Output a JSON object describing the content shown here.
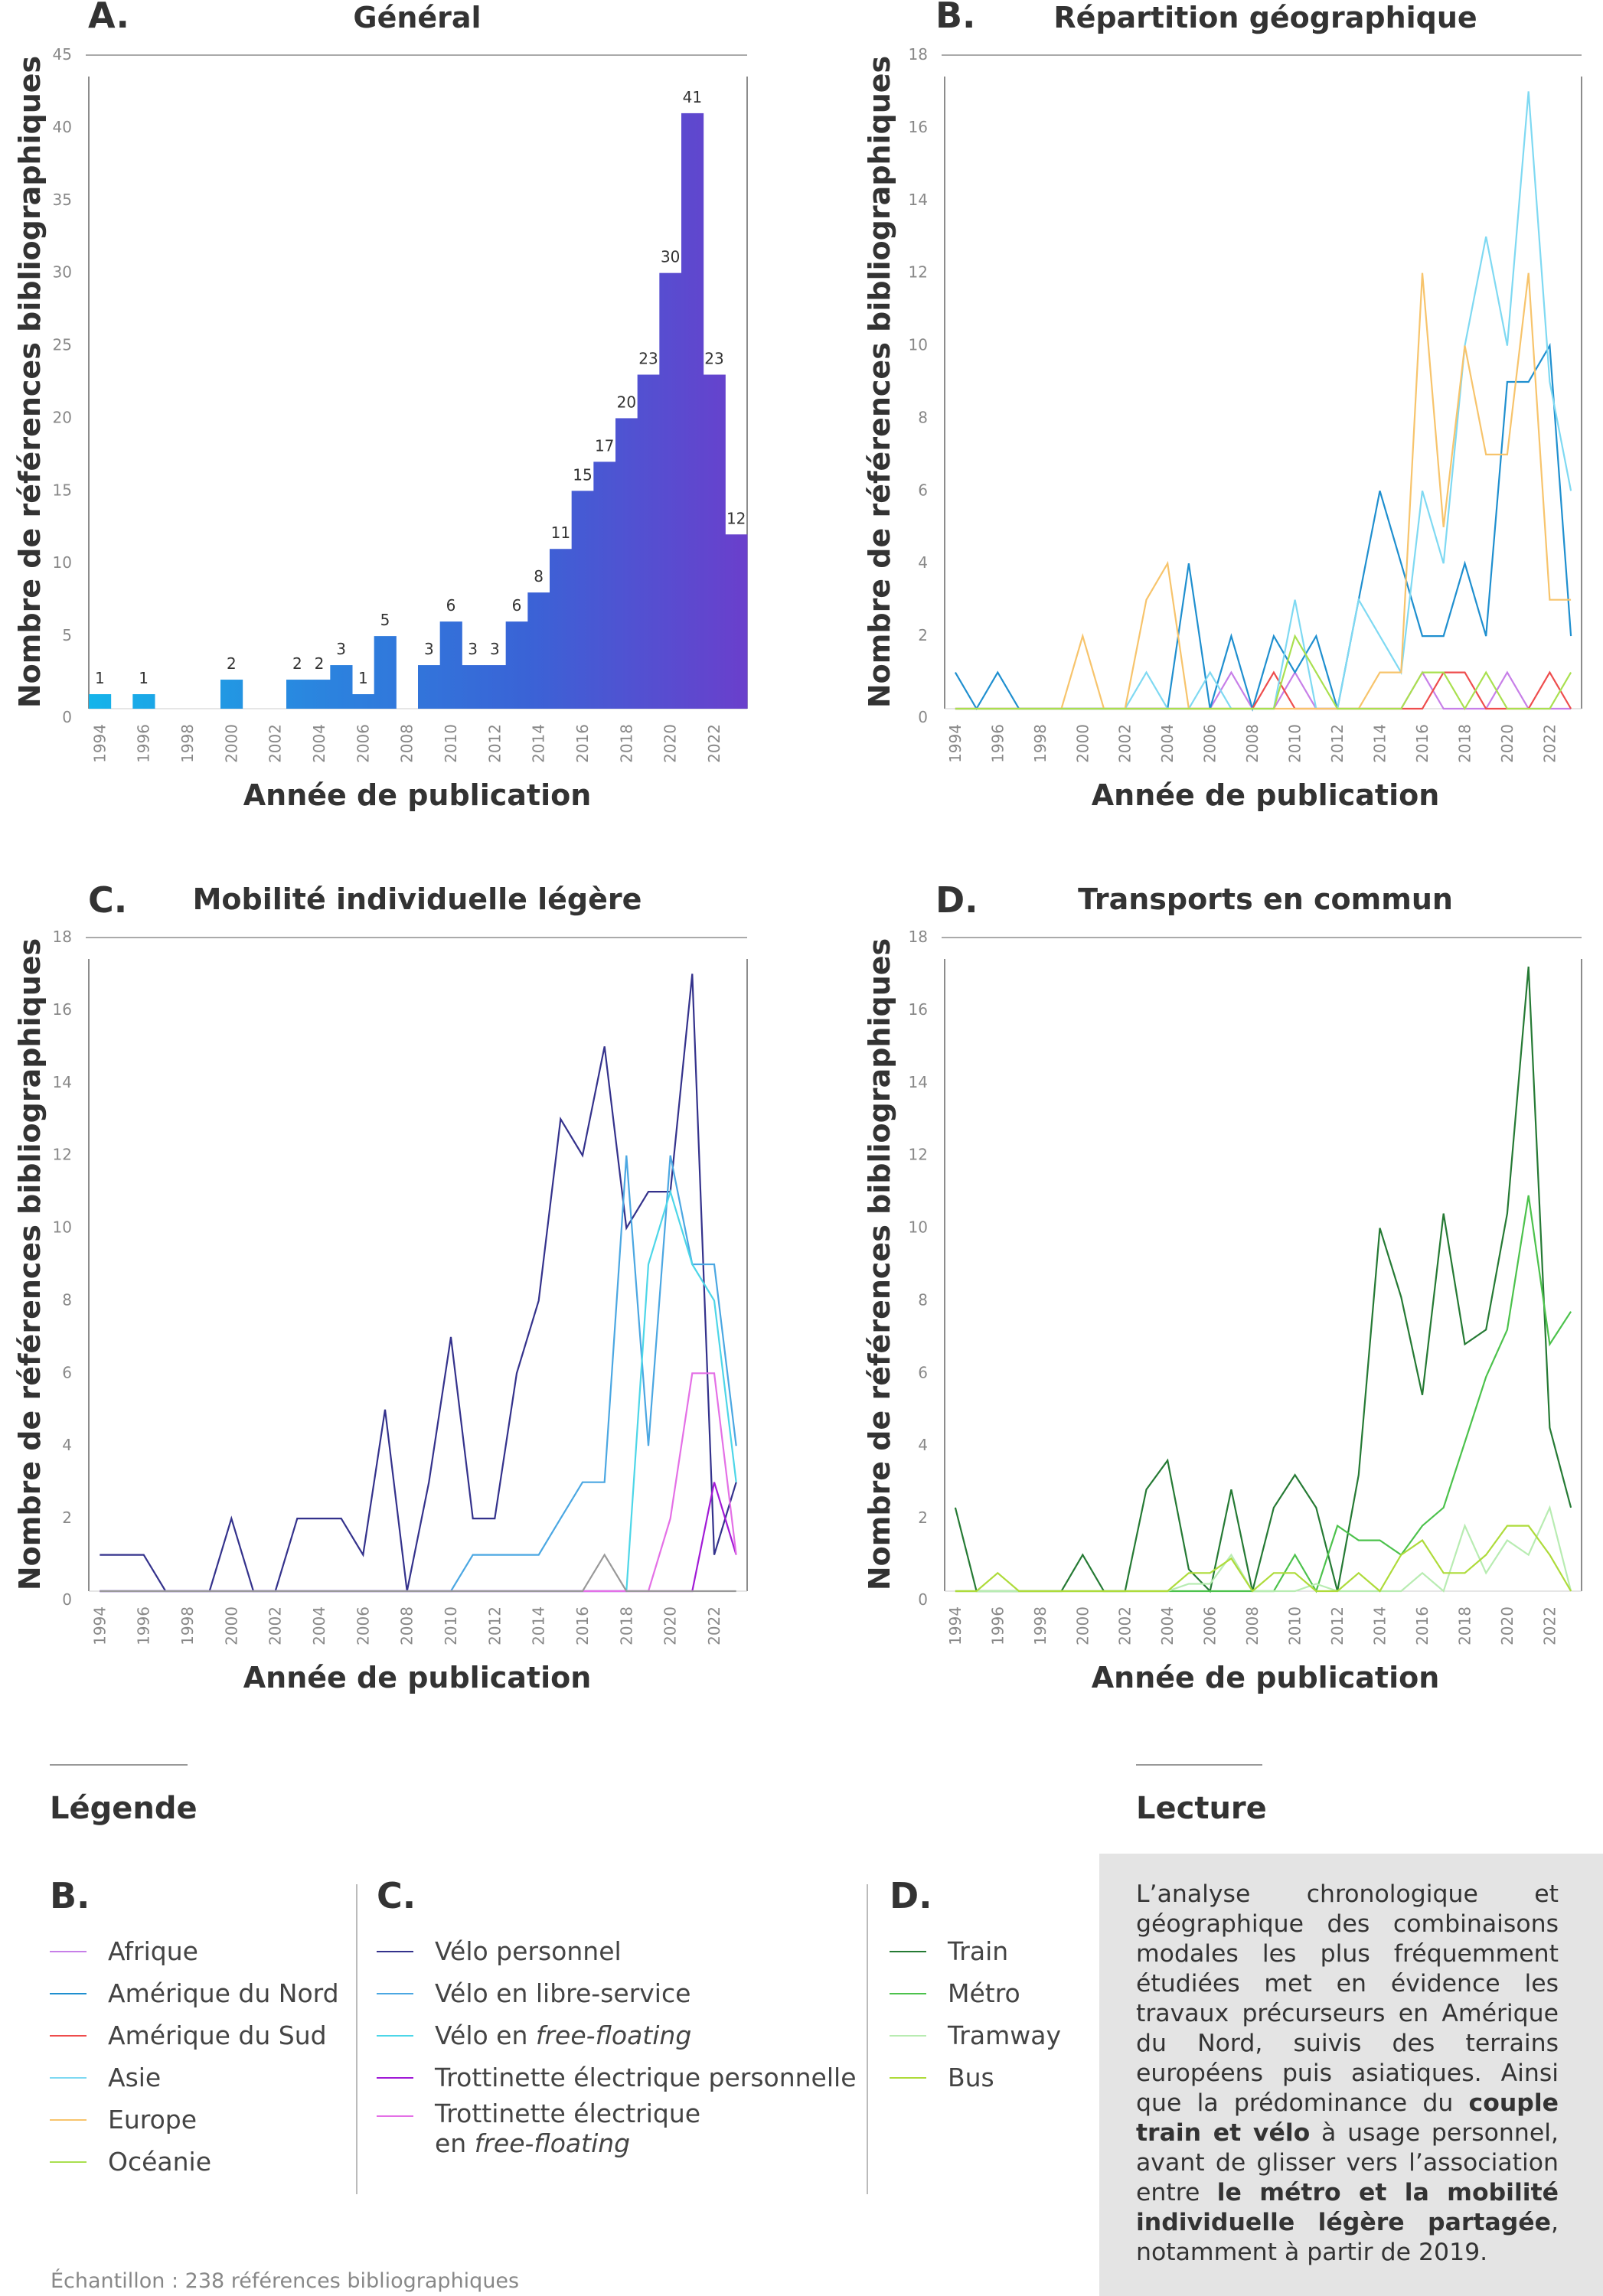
{
  "years": [
    "1994",
    "1995",
    "1996",
    "1997",
    "1998",
    "1999",
    "2000",
    "2001",
    "2002",
    "2003",
    "2004",
    "2005",
    "2006",
    "2007",
    "2008",
    "2009",
    "2010",
    "2011",
    "2012",
    "2013",
    "2014",
    "2015",
    "2016",
    "2017",
    "2018",
    "2019",
    "2020",
    "2021",
    "2022",
    "2023"
  ],
  "x_tick_labels": [
    "1994",
    "1996",
    "1998",
    "2000",
    "2002",
    "2004",
    "2006",
    "2008",
    "2010",
    "2012",
    "2014",
    "2016",
    "2018",
    "2020",
    "2022"
  ],
  "xlabel": "Année de publication",
  "ylabel": "Nombre de références bibliographiques",
  "chart_data": [
    {
      "letter": "A.",
      "title": "Général",
      "type": "bar",
      "ylim": [
        0,
        45
      ],
      "yticks": [
        0,
        5,
        10,
        15,
        20,
        25,
        30,
        35,
        40,
        45
      ],
      "values": [
        1,
        0,
        1,
        0,
        0,
        0,
        2,
        0,
        0,
        2,
        2,
        3,
        1,
        5,
        0,
        3,
        6,
        3,
        3,
        6,
        8,
        11,
        15,
        17,
        20,
        23,
        30,
        41,
        23,
        12
      ],
      "gradient": [
        "#15b4ea",
        "#2a86df",
        "#3a63d6",
        "#6a3fcc"
      ]
    },
    {
      "letter": "B.",
      "title": "Répartition géographique",
      "type": "line",
      "ylim": [
        0,
        18
      ],
      "yticks": [
        0,
        2,
        4,
        6,
        8,
        10,
        12,
        14,
        16,
        18
      ],
      "series": [
        {
          "name": "Afrique",
          "color": "#c77fe8",
          "values": [
            0,
            0,
            0,
            0,
            0,
            0,
            0,
            0,
            0,
            0,
            0,
            0,
            0,
            1,
            0,
            0,
            1,
            0,
            0,
            0,
            0,
            0,
            1,
            0,
            0,
            0,
            1,
            0,
            0,
            0
          ]
        },
        {
          "name": "Amérique du Nord",
          "color": "#1f8fcf",
          "values": [
            1,
            0,
            1,
            0,
            0,
            0,
            0,
            0,
            0,
            0,
            0,
            4,
            0,
            2,
            0,
            2,
            1,
            2,
            0,
            3,
            6,
            4,
            2,
            2,
            4,
            2,
            9,
            9,
            10,
            2
          ]
        },
        {
          "name": "Amérique du Sud",
          "color": "#ee4d4d",
          "values": [
            0,
            0,
            0,
            0,
            0,
            0,
            0,
            0,
            0,
            0,
            0,
            0,
            0,
            0,
            0,
            1,
            0,
            0,
            0,
            0,
            0,
            0,
            0,
            1,
            1,
            0,
            0,
            0,
            1,
            0
          ]
        },
        {
          "name": "Asie",
          "color": "#7fd9f2",
          "values": [
            0,
            0,
            0,
            0,
            0,
            0,
            0,
            0,
            0,
            1,
            0,
            0,
            1,
            0,
            0,
            0,
            3,
            0,
            0,
            3,
            2,
            1,
            6,
            4,
            10,
            13,
            10,
            17,
            9,
            6
          ]
        },
        {
          "name": "Europe",
          "color": "#f7c46c",
          "values": [
            0,
            0,
            0,
            0,
            0,
            0,
            2,
            0,
            0,
            3,
            4,
            0,
            0,
            0,
            0,
            0,
            0,
            0,
            0,
            0,
            1,
            1,
            12,
            5,
            10,
            7,
            7,
            12,
            3,
            3
          ]
        },
        {
          "name": "Océanie",
          "color": "#a9e04f",
          "values": [
            0,
            0,
            0,
            0,
            0,
            0,
            0,
            0,
            0,
            0,
            0,
            0,
            0,
            0,
            0,
            0,
            2,
            1,
            0,
            0,
            0,
            0,
            1,
            1,
            0,
            1,
            0,
            0,
            0,
            1
          ]
        }
      ]
    },
    {
      "letter": "C.",
      "title": "Mobilité individuelle légère",
      "type": "line",
      "ylim": [
        0,
        18
      ],
      "yticks": [
        0,
        2,
        4,
        6,
        8,
        10,
        12,
        14,
        16,
        18
      ],
      "series": [
        {
          "name": "Vélo personnel",
          "color": "#34328c",
          "values": [
            1,
            1,
            1,
            0,
            0,
            0,
            2,
            0,
            0,
            2,
            2,
            2,
            1,
            5,
            0,
            3,
            7,
            2,
            2,
            6,
            8,
            13,
            12,
            15,
            10,
            11,
            11,
            17,
            1,
            3
          ]
        },
        {
          "name": "Vélo en libre-service",
          "color": "#4ba7e2",
          "values": [
            0,
            0,
            0,
            0,
            0,
            0,
            0,
            0,
            0,
            0,
            0,
            0,
            0,
            0,
            0,
            0,
            0,
            1,
            1,
            1,
            1,
            2,
            3,
            3,
            12,
            4,
            12,
            9,
            9,
            4
          ]
        },
        {
          "name": "Vélo en free-floating",
          "color": "#4dd6e8",
          "values": [
            0,
            0,
            0,
            0,
            0,
            0,
            0,
            0,
            0,
            0,
            0,
            0,
            0,
            0,
            0,
            0,
            0,
            0,
            0,
            0,
            0,
            0,
            0,
            0,
            0,
            9,
            11,
            9,
            8,
            3
          ]
        },
        {
          "name": "Trottinette électrique personnelle",
          "color": "#a11ad6",
          "values": [
            0,
            0,
            0,
            0,
            0,
            0,
            0,
            0,
            0,
            0,
            0,
            0,
            0,
            0,
            0,
            0,
            0,
            0,
            0,
            0,
            0,
            0,
            0,
            0,
            0,
            0,
            0,
            0,
            3,
            1
          ]
        },
        {
          "name": "Trottinette électrique en free-floating",
          "color": "#e470e6",
          "values": [
            0,
            0,
            0,
            0,
            0,
            0,
            0,
            0,
            0,
            0,
            0,
            0,
            0,
            0,
            0,
            0,
            0,
            0,
            0,
            0,
            0,
            0,
            0,
            0,
            0,
            0,
            2,
            6,
            6,
            1
          ]
        },
        {
          "color": "#999999",
          "values": [
            0,
            0,
            0,
            0,
            0,
            0,
            0,
            0,
            0,
            0,
            0,
            0,
            0,
            0,
            0,
            0,
            0,
            0,
            0,
            0,
            0,
            0,
            0,
            1,
            0,
            0,
            0,
            0,
            0,
            0
          ]
        }
      ]
    },
    {
      "letter": "D.",
      "title": "Transports en commun",
      "type": "line",
      "ylim": [
        0,
        18
      ],
      "yticks": [
        0,
        2,
        4,
        6,
        8,
        10,
        12,
        14,
        16,
        18
      ],
      "series": [
        {
          "name": "Train",
          "color": "#257a34",
          "values": [
            2.3,
            0,
            0,
            0,
            0,
            0,
            1,
            0,
            0,
            2.8,
            3.6,
            0.6,
            0,
            2.8,
            0,
            2.3,
            3.2,
            2.3,
            0,
            3.2,
            10,
            8.1,
            5.4,
            10.4,
            6.8,
            7.2,
            10.4,
            17.2,
            4.5,
            2.3
          ]
        },
        {
          "name": "Métro",
          "color": "#4cc24c",
          "values": [
            0,
            0,
            0,
            0,
            0,
            0,
            0,
            0,
            0,
            0,
            0,
            0,
            0,
            0,
            0,
            0,
            1,
            0,
            1.8,
            1.4,
            1.4,
            1,
            1.8,
            2.3,
            4.1,
            5.9,
            7.2,
            10.9,
            6.8,
            7.7
          ]
        },
        {
          "name": "Tramway",
          "color": "#b8ecb2",
          "values": [
            0,
            0,
            0,
            0,
            0,
            0,
            0,
            0,
            0,
            0,
            0,
            0.2,
            0.2,
            1,
            0,
            0,
            0,
            0.2,
            0,
            0,
            0,
            0,
            0.5,
            0,
            1.8,
            0.5,
            1.4,
            1,
            2.3,
            0
          ]
        },
        {
          "name": "Bus",
          "color": "#aedb3a",
          "values": [
            0,
            0,
            0.5,
            0,
            0,
            0,
            0,
            0,
            0,
            0,
            0,
            0.5,
            0.5,
            0.9,
            0,
            0.5,
            0.5,
            0,
            0,
            0.5,
            0,
            1,
            1.4,
            0.5,
            0.5,
            1,
            1.8,
            1.8,
            1,
            0
          ]
        }
      ]
    }
  ],
  "legend": {
    "heading": "Légende",
    "groups": [
      {
        "letter": "B.",
        "items": [
          {
            "label": "Afrique",
            "color": "#c77fe8"
          },
          {
            "label": "Amérique du Nord",
            "color": "#1f8fcf"
          },
          {
            "label": "Amérique du Sud",
            "color": "#ee4d4d"
          },
          {
            "label": "Asie",
            "color": "#7fd9f2"
          },
          {
            "label": "Europe",
            "color": "#f7c46c"
          },
          {
            "label": "Océanie",
            "color": "#a9e04f"
          }
        ]
      },
      {
        "letter": "C.",
        "items": [
          {
            "label": "Vélo personnel",
            "color": "#34328c"
          },
          {
            "label": "Vélo en libre-service",
            "color": "#4ba7e2"
          },
          {
            "label_prefix": "Vélo en ",
            "label_italic": "free-floating",
            "color": "#4dd6e8"
          },
          {
            "label": "Trottinette électrique personnelle",
            "color": "#a11ad6"
          },
          {
            "label_line1": "Trottinette électrique",
            "label_prefix": "en ",
            "label_italic": "free-floating",
            "color": "#e470e6"
          }
        ]
      },
      {
        "letter": "D.",
        "items": [
          {
            "label": "Train",
            "color": "#257a34"
          },
          {
            "label": "Métro",
            "color": "#4cc24c"
          },
          {
            "label": "Tramway",
            "color": "#b8ecb2"
          },
          {
            "label": "Bus",
            "color": "#aedb3a"
          }
        ]
      }
    ]
  },
  "lecture": {
    "heading": "Lecture",
    "p1": "L’analyse chronologique et géographique des combinaisons modales les plus fréquemment étudiées met en évidence les travaux précurseurs en Amérique du Nord, suivis des terrains européens puis asiatiques. Ainsi que la prédominance du ",
    "b1": "couple train et vélo",
    "p2": " à usage personnel, avant de glisser vers l’association entre ",
    "b2": "le métro et la mobilité individuelle légère partagée",
    "p3": ", notamment à partir de 2019."
  },
  "sample_note": "Échantillon : 238 références bibliographiques"
}
